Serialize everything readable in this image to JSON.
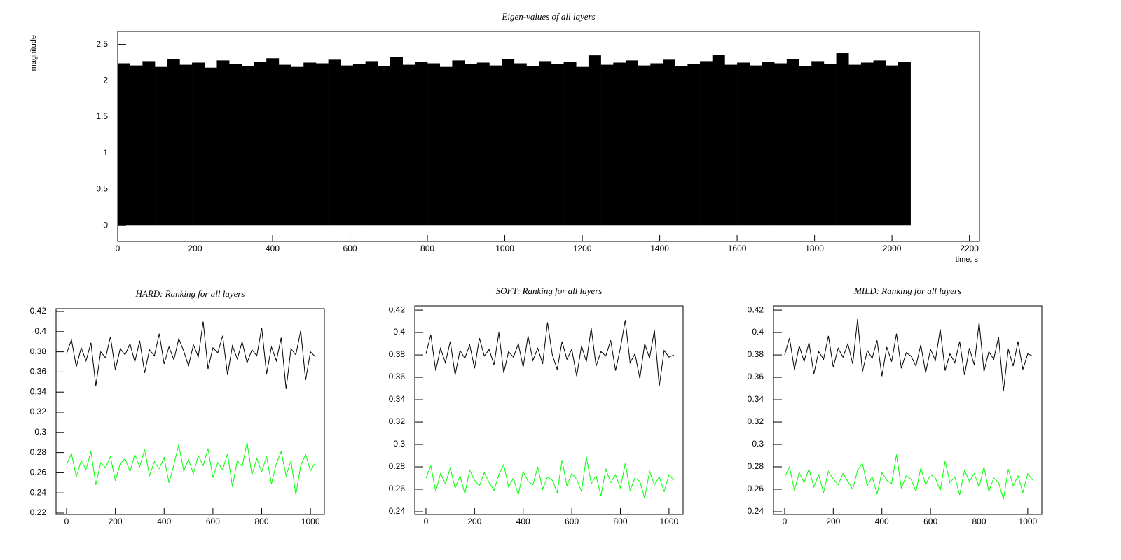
{
  "chart_data": [
    {
      "type": "histogram",
      "title": "Eigen-values of all layers",
      "ylabel": "magnitude",
      "xlabel": "time, s",
      "color": "#000000",
      "bins": [
        0,
        32,
        64,
        96,
        128,
        160,
        192,
        224,
        256,
        288,
        320,
        352,
        384,
        416,
        448,
        480,
        512,
        544,
        576,
        608,
        640,
        672,
        704,
        736,
        768,
        800,
        832,
        864,
        896,
        928,
        960,
        992,
        1024,
        1056,
        1088,
        1120,
        1152,
        1184,
        1216,
        1248,
        1280,
        1312,
        1344,
        1376,
        1408,
        1440,
        1472,
        1504,
        1536,
        1568,
        1600,
        1632,
        1664,
        1696,
        1728,
        1760,
        1792,
        1824,
        1856,
        1888,
        1920,
        1952,
        1984,
        2016,
        2048
      ],
      "values": [
        2.24,
        2.21,
        2.27,
        2.19,
        2.3,
        2.22,
        2.25,
        2.18,
        2.28,
        2.23,
        2.2,
        2.26,
        2.31,
        2.22,
        2.19,
        2.25,
        2.24,
        2.29,
        2.21,
        2.23,
        2.27,
        2.2,
        2.33,
        2.22,
        2.26,
        2.24,
        2.19,
        2.28,
        2.23,
        2.25,
        2.21,
        2.3,
        2.24,
        2.2,
        2.27,
        2.23,
        2.26,
        2.19,
        2.35,
        2.22,
        2.25,
        2.28,
        2.21,
        2.24,
        2.29,
        2.2,
        2.23,
        2.27,
        2.36,
        2.22,
        2.25,
        2.21,
        2.26,
        2.24,
        2.3,
        2.2,
        2.27,
        2.23,
        2.38,
        2.22,
        2.25,
        2.28,
        2.21,
        2.26
      ],
      "xlim": [
        0,
        2226
      ],
      "ylim": [
        -0.22,
        2.68
      ],
      "xticks": [
        0,
        200,
        400,
        600,
        800,
        1000,
        1200,
        1400,
        1600,
        1800,
        2000,
        2200
      ],
      "yticks": [
        0,
        0.5,
        1,
        1.5,
        2,
        2.5
      ]
    },
    {
      "type": "line",
      "title": "HARD: Ranking for all layers",
      "x": [
        0,
        20,
        40,
        60,
        80,
        100,
        120,
        140,
        160,
        180,
        200,
        220,
        240,
        260,
        280,
        300,
        320,
        340,
        360,
        380,
        400,
        420,
        440,
        460,
        480,
        500,
        520,
        540,
        560,
        580,
        600,
        620,
        640,
        660,
        680,
        700,
        720,
        740,
        760,
        780,
        800,
        820,
        840,
        860,
        880,
        900,
        920,
        940,
        960,
        980,
        1000,
        1020
      ],
      "series": [
        {
          "color": "#000000",
          "values": [
            0.378,
            0.392,
            0.365,
            0.384,
            0.371,
            0.389,
            0.346,
            0.38,
            0.374,
            0.395,
            0.362,
            0.383,
            0.377,
            0.388,
            0.37,
            0.391,
            0.359,
            0.382,
            0.376,
            0.398,
            0.368,
            0.385,
            0.372,
            0.393,
            0.381,
            0.366,
            0.387,
            0.375,
            0.41,
            0.363,
            0.384,
            0.379,
            0.396,
            0.357,
            0.386,
            0.373,
            0.39,
            0.369,
            0.382,
            0.376,
            0.404,
            0.358,
            0.385,
            0.371,
            0.394,
            0.343,
            0.383,
            0.377,
            0.401,
            0.352,
            0.38,
            0.375
          ]
        },
        {
          "color": "#00ff00",
          "values": [
            0.268,
            0.279,
            0.256,
            0.272,
            0.263,
            0.281,
            0.248,
            0.27,
            0.265,
            0.276,
            0.252,
            0.269,
            0.274,
            0.261,
            0.278,
            0.266,
            0.283,
            0.257,
            0.271,
            0.264,
            0.275,
            0.25,
            0.268,
            0.288,
            0.262,
            0.273,
            0.259,
            0.277,
            0.267,
            0.284,
            0.255,
            0.27,
            0.263,
            0.279,
            0.246,
            0.272,
            0.266,
            0.29,
            0.258,
            0.274,
            0.261,
            0.276,
            0.249,
            0.269,
            0.281,
            0.257,
            0.272,
            0.238,
            0.267,
            0.278,
            0.262,
            0.27
          ]
        }
      ],
      "xlim": [
        -43,
        1057
      ],
      "ylim": [
        0.2186,
        0.4228
      ],
      "xticks": [
        0,
        200,
        400,
        600,
        800,
        1000
      ],
      "yticks": [
        0.22,
        0.24,
        0.26,
        0.28,
        0.3,
        0.32,
        0.34,
        0.36,
        0.38,
        0.4,
        0.42
      ]
    },
    {
      "type": "line",
      "title": "SOFT: Ranking for all layers",
      "x": [
        0,
        20,
        40,
        60,
        80,
        100,
        120,
        140,
        160,
        180,
        200,
        220,
        240,
        260,
        280,
        300,
        320,
        340,
        360,
        380,
        400,
        420,
        440,
        460,
        480,
        500,
        520,
        540,
        560,
        580,
        600,
        620,
        640,
        660,
        680,
        700,
        720,
        740,
        760,
        780,
        800,
        820,
        840,
        860,
        880,
        900,
        920,
        940,
        960,
        980,
        1000,
        1020
      ],
      "series": [
        {
          "color": "#000000",
          "values": [
            0.381,
            0.398,
            0.366,
            0.386,
            0.373,
            0.392,
            0.362,
            0.384,
            0.377,
            0.389,
            0.368,
            0.395,
            0.379,
            0.385,
            0.371,
            0.4,
            0.364,
            0.383,
            0.378,
            0.39,
            0.369,
            0.397,
            0.375,
            0.386,
            0.372,
            0.409,
            0.38,
            0.367,
            0.392,
            0.376,
            0.385,
            0.361,
            0.388,
            0.374,
            0.404,
            0.37,
            0.383,
            0.379,
            0.393,
            0.366,
            0.386,
            0.411,
            0.373,
            0.381,
            0.359,
            0.39,
            0.377,
            0.402,
            0.352,
            0.384,
            0.378,
            0.38
          ]
        },
        {
          "color": "#00ff00",
          "values": [
            0.27,
            0.281,
            0.258,
            0.274,
            0.265,
            0.279,
            0.261,
            0.272,
            0.256,
            0.277,
            0.268,
            0.263,
            0.275,
            0.266,
            0.259,
            0.273,
            0.282,
            0.262,
            0.27,
            0.255,
            0.276,
            0.267,
            0.264,
            0.28,
            0.26,
            0.271,
            0.268,
            0.257,
            0.286,
            0.263,
            0.274,
            0.269,
            0.258,
            0.289,
            0.265,
            0.272,
            0.254,
            0.278,
            0.266,
            0.273,
            0.261,
            0.283,
            0.259,
            0.27,
            0.267,
            0.252,
            0.276,
            0.264,
            0.271,
            0.258,
            0.273,
            0.268
          ]
        }
      ],
      "xlim": [
        -46,
        1058
      ],
      "ylim": [
        0.2375,
        0.4238
      ],
      "xticks": [
        0,
        200,
        400,
        600,
        800,
        1000
      ],
      "yticks": [
        0.24,
        0.26,
        0.28,
        0.3,
        0.32,
        0.34,
        0.36,
        0.38,
        0.4,
        0.42
      ]
    },
    {
      "type": "line",
      "title": "MILD: Ranking for all layers",
      "x": [
        0,
        20,
        40,
        60,
        80,
        100,
        120,
        140,
        160,
        180,
        200,
        220,
        240,
        260,
        280,
        300,
        320,
        340,
        360,
        380,
        400,
        420,
        440,
        460,
        480,
        500,
        520,
        540,
        560,
        580,
        600,
        620,
        640,
        660,
        680,
        700,
        720,
        740,
        760,
        780,
        800,
        820,
        840,
        860,
        880,
        900,
        920,
        940,
        960,
        980,
        1000,
        1020
      ],
      "series": [
        {
          "color": "#000000",
          "values": [
            0.38,
            0.395,
            0.367,
            0.388,
            0.374,
            0.391,
            0.363,
            0.383,
            0.376,
            0.397,
            0.369,
            0.386,
            0.378,
            0.39,
            0.372,
            0.412,
            0.365,
            0.384,
            0.377,
            0.393,
            0.361,
            0.387,
            0.374,
            0.399,
            0.368,
            0.382,
            0.379,
            0.37,
            0.389,
            0.364,
            0.385,
            0.375,
            0.403,
            0.366,
            0.381,
            0.373,
            0.392,
            0.362,
            0.386,
            0.371,
            0.409,
            0.365,
            0.383,
            0.376,
            0.396,
            0.348,
            0.385,
            0.37,
            0.392,
            0.367,
            0.381,
            0.379
          ]
        },
        {
          "color": "#00ff00",
          "values": [
            0.271,
            0.28,
            0.259,
            0.275,
            0.266,
            0.278,
            0.262,
            0.273,
            0.257,
            0.276,
            0.269,
            0.264,
            0.274,
            0.267,
            0.26,
            0.277,
            0.283,
            0.263,
            0.271,
            0.256,
            0.275,
            0.268,
            0.265,
            0.291,
            0.261,
            0.272,
            0.269,
            0.258,
            0.279,
            0.264,
            0.273,
            0.27,
            0.259,
            0.285,
            0.266,
            0.271,
            0.255,
            0.277,
            0.267,
            0.274,
            0.262,
            0.28,
            0.258,
            0.27,
            0.266,
            0.251,
            0.278,
            0.263,
            0.272,
            0.257,
            0.274,
            0.268
          ]
        }
      ],
      "xlim": [
        -46,
        1058
      ],
      "ylim": [
        0.2375,
        0.4238
      ],
      "xticks": [
        0,
        200,
        400,
        600,
        800,
        1000
      ],
      "yticks": [
        0.24,
        0.26,
        0.28,
        0.3,
        0.32,
        0.34,
        0.36,
        0.38,
        0.4,
        0.42
      ]
    }
  ]
}
